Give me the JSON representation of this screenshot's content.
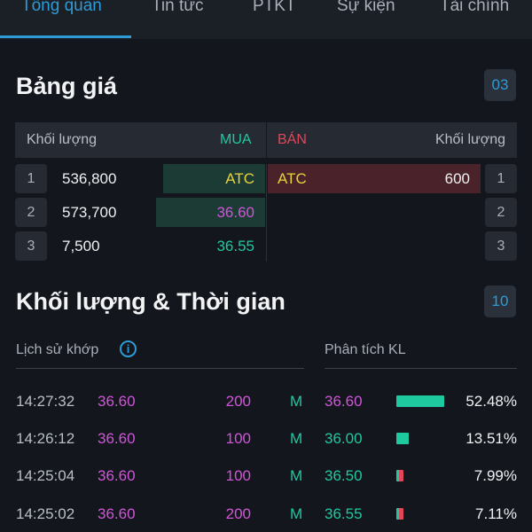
{
  "tabs": [
    "Tổng quan",
    "Tin tức",
    "PTKT",
    "Sự kiện",
    "Tài chính"
  ],
  "price_board": {
    "title": "Bảng giá",
    "badge": "03",
    "header": {
      "bid_vol": "Khối lượng",
      "bid": "MUA",
      "ask": "BÁN",
      "ask_vol": "Khối lượng"
    },
    "rows": [
      {
        "level": "1",
        "bid_vol": "536,800",
        "bid_price": "ATC",
        "ask_price": "ATC",
        "ask_vol": "600"
      },
      {
        "level": "2",
        "bid_vol": "573,700",
        "bid_price": "36.60",
        "ask_price": "",
        "ask_vol": ""
      },
      {
        "level": "3",
        "bid_vol": "7,500",
        "bid_price": "36.55",
        "ask_price": "",
        "ask_vol": ""
      }
    ]
  },
  "volume_time": {
    "title": "Khối lượng & Thời gian",
    "badge": "10",
    "history_label": "Lịch sử khớp",
    "analysis_label": "Phân tích KL",
    "trades": [
      {
        "time": "14:27:32",
        "price": "36.60",
        "volume": "200",
        "side": "M"
      },
      {
        "time": "14:26:12",
        "price": "36.60",
        "volume": "100",
        "side": "M"
      },
      {
        "time": "14:25:04",
        "price": "36.60",
        "volume": "100",
        "side": "M"
      },
      {
        "time": "14:25:02",
        "price": "36.60",
        "volume": "200",
        "side": "M"
      }
    ],
    "analysis": [
      {
        "price": "36.60",
        "percent": "52.48%",
        "share": 0.5248
      },
      {
        "price": "36.00",
        "percent": "13.51%",
        "share": 0.1351
      },
      {
        "price": "36.50",
        "percent": "7.99%",
        "share": 0.0799
      },
      {
        "price": "36.55",
        "percent": "7.11%",
        "share": 0.0711
      }
    ]
  },
  "colors": {
    "accent": "#2f9bd6",
    "buy": "#1fc9a0",
    "sell": "#e0475a",
    "price_ref": "#d155d9",
    "atc": "#e8d23c"
  }
}
